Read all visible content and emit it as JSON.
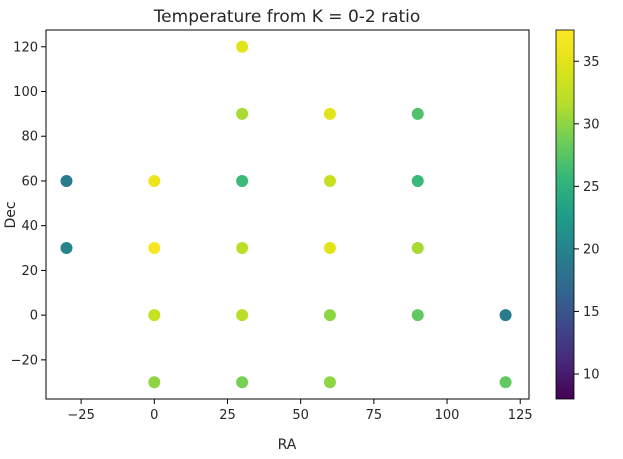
{
  "chart_data": {
    "type": "scatter",
    "title": "Temperature from K = 0-2 ratio",
    "xlabel": "RA",
    "ylabel": "Dec",
    "xlim": [
      -37,
      128
    ],
    "ylim": [
      -37.5,
      127.5
    ],
    "xticks": [
      -25,
      0,
      25,
      50,
      75,
      100,
      125
    ],
    "xtick_labels": [
      "−25",
      "0",
      "25",
      "50",
      "75",
      "100",
      "125"
    ],
    "yticks": [
      -20,
      0,
      20,
      40,
      60,
      80,
      100,
      120
    ],
    "ytick_labels": [
      "−20",
      "0",
      "20",
      "40",
      "60",
      "80",
      "100",
      "120"
    ],
    "grid": false,
    "colormap": "viridis",
    "colorbar": {
      "range": [
        8,
        37.5
      ],
      "ticks": [
        10,
        15,
        20,
        25,
        30,
        35
      ],
      "tick_labels": [
        "10",
        "15",
        "20",
        "25",
        "30",
        "35"
      ]
    },
    "points": [
      {
        "x": 30,
        "y": 120,
        "value": 35
      },
      {
        "x": 30,
        "y": 90,
        "value": 31
      },
      {
        "x": 60,
        "y": 90,
        "value": 35
      },
      {
        "x": 90,
        "y": 90,
        "value": 27
      },
      {
        "x": -30,
        "y": 60,
        "value": 19
      },
      {
        "x": 0,
        "y": 60,
        "value": 36
      },
      {
        "x": 30,
        "y": 60,
        "value": 26
      },
      {
        "x": 60,
        "y": 60,
        "value": 33
      },
      {
        "x": 90,
        "y": 60,
        "value": 26
      },
      {
        "x": -30,
        "y": 30,
        "value": 20
      },
      {
        "x": 0,
        "y": 30,
        "value": 37
      },
      {
        "x": 30,
        "y": 30,
        "value": 32
      },
      {
        "x": 60,
        "y": 30,
        "value": 35
      },
      {
        "x": 90,
        "y": 30,
        "value": 31
      },
      {
        "x": 0,
        "y": 0,
        "value": 33
      },
      {
        "x": 30,
        "y": 0,
        "value": 32
      },
      {
        "x": 60,
        "y": 0,
        "value": 30
      },
      {
        "x": 90,
        "y": 0,
        "value": 28
      },
      {
        "x": 120,
        "y": 0,
        "value": 19
      },
      {
        "x": 0,
        "y": -30,
        "value": 30
      },
      {
        "x": 30,
        "y": -30,
        "value": 29
      },
      {
        "x": 60,
        "y": -30,
        "value": 30
      },
      {
        "x": 120,
        "y": -30,
        "value": 28
      }
    ]
  }
}
